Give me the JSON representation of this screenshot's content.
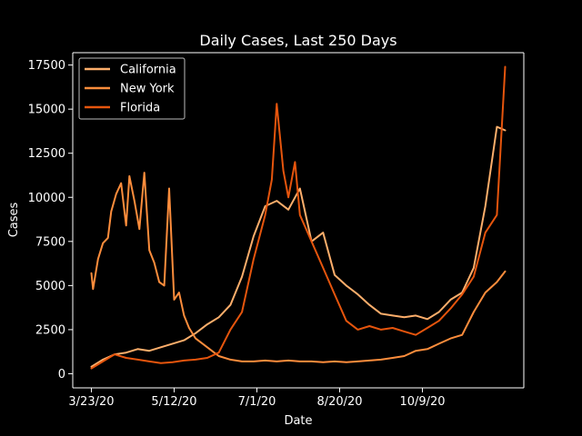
{
  "chart_data": {
    "type": "line",
    "title": "Daily Cases, Last 250 Days",
    "xlabel": "Date",
    "ylabel": "Cases",
    "x_range": [
      "2020-03-23",
      "2020-11-28"
    ],
    "ylim": [
      -800,
      18200
    ],
    "x_ticks": [
      {
        "date": "2020-03-23",
        "label": "3/23/20"
      },
      {
        "date": "2020-05-12",
        "label": "5/12/20"
      },
      {
        "date": "2020-07-01",
        "label": "7/1/20"
      },
      {
        "date": "2020-08-20",
        "label": "8/20/20"
      },
      {
        "date": "2020-10-09",
        "label": "10/9/20"
      }
    ],
    "y_ticks": [
      0,
      2500,
      5000,
      7500,
      10000,
      12500,
      15000,
      17500
    ],
    "grid": false,
    "legend_position": "top-left",
    "background": "#000000",
    "series": [
      {
        "name": "California",
        "color": "#fdae6b",
        "points": [
          [
            "2020-03-23",
            400
          ],
          [
            "2020-03-30",
            800
          ],
          [
            "2020-04-06",
            1100
          ],
          [
            "2020-04-13",
            1200
          ],
          [
            "2020-04-20",
            1400
          ],
          [
            "2020-04-27",
            1300
          ],
          [
            "2020-05-04",
            1500
          ],
          [
            "2020-05-11",
            1700
          ],
          [
            "2020-05-18",
            1900
          ],
          [
            "2020-05-25",
            2300
          ],
          [
            "2020-06-01",
            2800
          ],
          [
            "2020-06-08",
            3200
          ],
          [
            "2020-06-15",
            3900
          ],
          [
            "2020-06-22",
            5500
          ],
          [
            "2020-06-29",
            7800
          ],
          [
            "2020-07-06",
            9500
          ],
          [
            "2020-07-13",
            9800
          ],
          [
            "2020-07-20",
            9300
          ],
          [
            "2020-07-27",
            10500
          ],
          [
            "2020-08-03",
            7500
          ],
          [
            "2020-08-10",
            8000
          ],
          [
            "2020-08-17",
            5600
          ],
          [
            "2020-08-24",
            5000
          ],
          [
            "2020-08-31",
            4500
          ],
          [
            "2020-09-07",
            3900
          ],
          [
            "2020-09-14",
            3400
          ],
          [
            "2020-09-21",
            3300
          ],
          [
            "2020-09-28",
            3200
          ],
          [
            "2020-10-05",
            3300
          ],
          [
            "2020-10-12",
            3100
          ],
          [
            "2020-10-19",
            3500
          ],
          [
            "2020-10-26",
            4200
          ],
          [
            "2020-11-02",
            4600
          ],
          [
            "2020-11-09",
            6000
          ],
          [
            "2020-11-16",
            9500
          ],
          [
            "2020-11-23",
            14000
          ],
          [
            "2020-11-28",
            13800
          ]
        ]
      },
      {
        "name": "New York",
        "color": "#fd8d3c",
        "points": [
          [
            "2020-03-23",
            5700
          ],
          [
            "2020-03-24",
            4800
          ],
          [
            "2020-03-27",
            6500
          ],
          [
            "2020-03-30",
            7400
          ],
          [
            "2020-04-02",
            7700
          ],
          [
            "2020-04-04",
            9200
          ],
          [
            "2020-04-07",
            10200
          ],
          [
            "2020-04-10",
            10800
          ],
          [
            "2020-04-13",
            8400
          ],
          [
            "2020-04-15",
            11200
          ],
          [
            "2020-04-18",
            9800
          ],
          [
            "2020-04-21",
            8200
          ],
          [
            "2020-04-24",
            11400
          ],
          [
            "2020-04-27",
            7000
          ],
          [
            "2020-04-30",
            6300
          ],
          [
            "2020-05-03",
            5200
          ],
          [
            "2020-05-06",
            5000
          ],
          [
            "2020-05-09",
            10500
          ],
          [
            "2020-05-12",
            4200
          ],
          [
            "2020-05-15",
            4600
          ],
          [
            "2020-05-18",
            3300
          ],
          [
            "2020-05-21",
            2600
          ],
          [
            "2020-05-25",
            2000
          ],
          [
            "2020-06-01",
            1500
          ],
          [
            "2020-06-08",
            1000
          ],
          [
            "2020-06-15",
            800
          ],
          [
            "2020-06-22",
            700
          ],
          [
            "2020-06-29",
            700
          ],
          [
            "2020-07-06",
            750
          ],
          [
            "2020-07-13",
            700
          ],
          [
            "2020-07-20",
            750
          ],
          [
            "2020-07-27",
            700
          ],
          [
            "2020-08-03",
            700
          ],
          [
            "2020-08-10",
            650
          ],
          [
            "2020-08-17",
            700
          ],
          [
            "2020-08-24",
            650
          ],
          [
            "2020-08-31",
            700
          ],
          [
            "2020-09-07",
            750
          ],
          [
            "2020-09-14",
            800
          ],
          [
            "2020-09-21",
            900
          ],
          [
            "2020-09-28",
            1000
          ],
          [
            "2020-10-05",
            1300
          ],
          [
            "2020-10-12",
            1400
          ],
          [
            "2020-10-19",
            1700
          ],
          [
            "2020-10-26",
            2000
          ],
          [
            "2020-11-02",
            2200
          ],
          [
            "2020-11-09",
            3500
          ],
          [
            "2020-11-16",
            4600
          ],
          [
            "2020-11-23",
            5200
          ],
          [
            "2020-11-28",
            5800
          ]
        ]
      },
      {
        "name": "Florida",
        "color": "#e6550d",
        "points": [
          [
            "2020-03-23",
            300
          ],
          [
            "2020-03-30",
            700
          ],
          [
            "2020-04-06",
            1100
          ],
          [
            "2020-04-13",
            900
          ],
          [
            "2020-04-20",
            800
          ],
          [
            "2020-04-27",
            700
          ],
          [
            "2020-05-04",
            600
          ],
          [
            "2020-05-11",
            650
          ],
          [
            "2020-05-18",
            750
          ],
          [
            "2020-05-25",
            800
          ],
          [
            "2020-06-01",
            900
          ],
          [
            "2020-06-08",
            1200
          ],
          [
            "2020-06-15",
            2500
          ],
          [
            "2020-06-22",
            3500
          ],
          [
            "2020-06-29",
            6500
          ],
          [
            "2020-07-06",
            9000
          ],
          [
            "2020-07-10",
            11000
          ],
          [
            "2020-07-13",
            15300
          ],
          [
            "2020-07-17",
            11500
          ],
          [
            "2020-07-20",
            10000
          ],
          [
            "2020-07-24",
            12000
          ],
          [
            "2020-07-27",
            9000
          ],
          [
            "2020-08-03",
            7500
          ],
          [
            "2020-08-10",
            6000
          ],
          [
            "2020-08-17",
            4500
          ],
          [
            "2020-08-24",
            3000
          ],
          [
            "2020-08-31",
            2500
          ],
          [
            "2020-09-07",
            2700
          ],
          [
            "2020-09-14",
            2500
          ],
          [
            "2020-09-21",
            2600
          ],
          [
            "2020-09-28",
            2400
          ],
          [
            "2020-10-05",
            2200
          ],
          [
            "2020-10-12",
            2600
          ],
          [
            "2020-10-19",
            3000
          ],
          [
            "2020-10-26",
            3700
          ],
          [
            "2020-11-02",
            4500
          ],
          [
            "2020-11-09",
            5500
          ],
          [
            "2020-11-16",
            8000
          ],
          [
            "2020-11-23",
            9000
          ],
          [
            "2020-11-28",
            17400
          ]
        ]
      }
    ]
  }
}
